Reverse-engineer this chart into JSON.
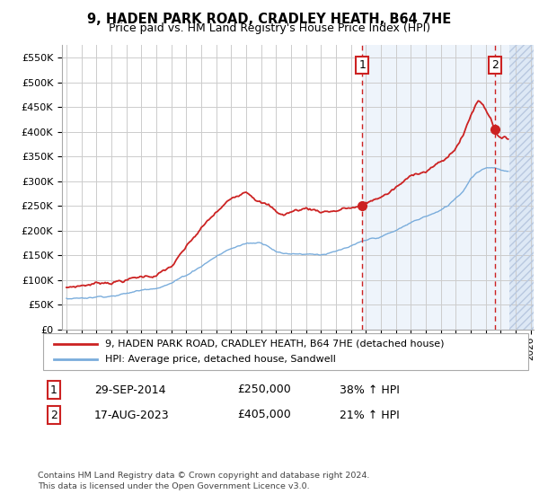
{
  "title": "9, HADEN PARK ROAD, CRADLEY HEATH, B64 7HE",
  "subtitle": "Price paid vs. HM Land Registry's House Price Index (HPI)",
  "ylabel_ticks": [
    "£0",
    "£50K",
    "£100K",
    "£150K",
    "£200K",
    "£250K",
    "£300K",
    "£350K",
    "£400K",
    "£450K",
    "£500K",
    "£550K"
  ],
  "ytick_values": [
    0,
    50000,
    100000,
    150000,
    200000,
    250000,
    300000,
    350000,
    400000,
    450000,
    500000,
    550000
  ],
  "xlim": [
    1994.7,
    2026.2
  ],
  "ylim": [
    0,
    575000
  ],
  "red_line_color": "#cc2222",
  "blue_line_color": "#7aaddc",
  "background_color": "#ffffff",
  "plot_bg_color": "#ffffff",
  "grid_color": "#cccccc",
  "hatch_region_start": 2024.58,
  "marker1_x": 2014.75,
  "marker1_y": 250000,
  "marker1_label": "1",
  "marker1_date": "29-SEP-2014",
  "marker1_price": "£250,000",
  "marker1_hpi": "38% ↑ HPI",
  "marker2_x": 2023.62,
  "marker2_y": 405000,
  "marker2_label": "2",
  "marker2_date": "17-AUG-2023",
  "marker2_price": "£405,000",
  "marker2_hpi": "21% ↑ HPI",
  "legend_line1": "9, HADEN PARK ROAD, CRADLEY HEATH, B64 7HE (detached house)",
  "legend_line2": "HPI: Average price, detached house, Sandwell",
  "footnote": "Contains HM Land Registry data © Crown copyright and database right 2024.\nThis data is licensed under the Open Government Licence v3.0.",
  "xticks": [
    1995,
    1996,
    1997,
    1998,
    1999,
    2000,
    2001,
    2002,
    2003,
    2004,
    2005,
    2006,
    2007,
    2008,
    2009,
    2010,
    2011,
    2012,
    2013,
    2014,
    2015,
    2016,
    2017,
    2018,
    2019,
    2020,
    2021,
    2022,
    2023,
    2024,
    2025,
    2026
  ],
  "red_keypoints_x": [
    1995,
    1996,
    1997,
    1998,
    1999,
    2000,
    2001,
    2002,
    2003,
    2004,
    2005,
    2006,
    2007,
    2007.5,
    2008,
    2008.5,
    2009,
    2009.5,
    2010,
    2011,
    2012,
    2013,
    2013.5,
    2014,
    2014.75,
    2015,
    2015.5,
    2016,
    2016.5,
    2017,
    2017.5,
    2018,
    2018.5,
    2019,
    2019.5,
    2020,
    2020.5,
    2021,
    2021.5,
    2022,
    2022.3,
    2022.5,
    2022.8,
    2023.0,
    2023.3,
    2023.62,
    2024.0,
    2024.5
  ],
  "red_keypoints_y": [
    85000,
    90000,
    95000,
    100000,
    105000,
    110000,
    115000,
    130000,
    165000,
    200000,
    230000,
    255000,
    278000,
    270000,
    260000,
    252000,
    238000,
    232000,
    238000,
    245000,
    240000,
    243000,
    247000,
    248000,
    250000,
    255000,
    260000,
    268000,
    275000,
    285000,
    295000,
    305000,
    315000,
    320000,
    330000,
    335000,
    345000,
    365000,
    390000,
    430000,
    450000,
    460000,
    455000,
    445000,
    430000,
    405000,
    390000,
    385000
  ],
  "blue_keypoints_x": [
    1995,
    1996,
    1997,
    1998,
    1999,
    2000,
    2001,
    2002,
    2003,
    2004,
    2005,
    2006,
    2007,
    2008,
    2008.5,
    2009,
    2009.5,
    2010,
    2011,
    2012,
    2013,
    2014,
    2015,
    2016,
    2017,
    2018,
    2019,
    2020,
    2020.5,
    2021,
    2021.5,
    2022,
    2022.5,
    2023.0,
    2023.62,
    2024.0,
    2024.5
  ],
  "blue_keypoints_y": [
    63000,
    65000,
    68000,
    72000,
    76000,
    82000,
    90000,
    100000,
    115000,
    135000,
    155000,
    170000,
    180000,
    182000,
    177000,
    168000,
    162000,
    162000,
    163000,
    163000,
    167000,
    175000,
    183000,
    190000,
    200000,
    215000,
    228000,
    238000,
    248000,
    263000,
    278000,
    305000,
    320000,
    328000,
    330000,
    325000,
    320000
  ]
}
